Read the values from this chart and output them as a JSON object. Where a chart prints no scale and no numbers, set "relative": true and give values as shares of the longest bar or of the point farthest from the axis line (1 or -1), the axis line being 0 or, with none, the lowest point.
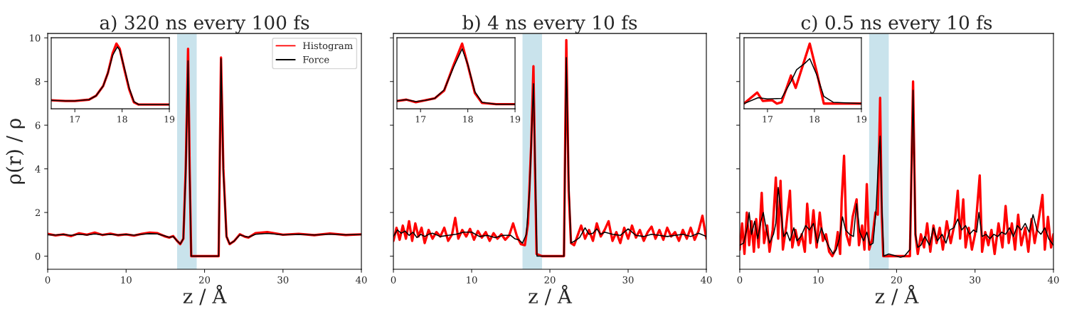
{
  "chart_data": [
    {
      "type": "line",
      "title": "a) 320 ns every 100 fs",
      "xlabel": "z / Å",
      "ylabel": "ρ(r) / ρ",
      "xlim": [
        0,
        40
      ],
      "xticks": [
        0,
        10,
        20,
        30,
        40
      ],
      "ylim": [
        -0.6,
        10.2
      ],
      "yticks": [
        0,
        2,
        4,
        6,
        8,
        10
      ],
      "legend": "top right",
      "grid": false,
      "bands": [
        {
          "axis": "x",
          "from": 16.5,
          "to": 19,
          "color": "#c9e3ec"
        }
      ],
      "series": [
        {
          "name": "Histogram",
          "color": "#ff0000",
          "x": [
            0,
            1,
            2,
            3,
            4,
            5,
            6,
            7,
            8,
            9,
            10,
            11,
            12,
            13,
            14,
            15,
            15.5,
            16,
            16.5,
            16.9,
            17.3,
            17.6,
            17.9,
            18.1,
            18.3,
            19,
            20,
            21,
            21.8,
            22.1,
            22.4,
            22.8,
            23.2,
            23.8,
            24.5,
            25.2,
            25.6,
            26.5,
            28,
            30,
            32,
            34,
            36,
            38,
            40
          ],
          "values": [
            1.02,
            0.95,
            1.0,
            0.92,
            1.05,
            0.98,
            1.08,
            0.97,
            1.03,
            0.96,
            1.0,
            0.94,
            1.02,
            1.08,
            1.05,
            0.9,
            0.85,
            0.92,
            0.7,
            0.55,
            0.8,
            4.0,
            9.5,
            4.0,
            0.0,
            0.0,
            0.0,
            0.0,
            0.0,
            9.1,
            4.0,
            0.9,
            0.55,
            0.7,
            1.0,
            0.88,
            0.85,
            1.05,
            1.1,
            0.98,
            1.02,
            0.96,
            1.04,
            0.97,
            1.0
          ]
        },
        {
          "name": "Force",
          "color": "#000000",
          "x": [
            0,
            1,
            2,
            3,
            4,
            5,
            6,
            7,
            8,
            9,
            10,
            11,
            12,
            13,
            14,
            15,
            15.5,
            16,
            16.5,
            16.9,
            17.3,
            17.6,
            17.9,
            18.1,
            18.3,
            19,
            20,
            21,
            21.8,
            22.1,
            22.4,
            22.8,
            23.2,
            23.8,
            24.5,
            25.2,
            25.6,
            26.5,
            28,
            30,
            32,
            34,
            36,
            38,
            40
          ],
          "values": [
            0.98,
            0.97,
            0.99,
            0.95,
            1.0,
            0.97,
            1.02,
            0.98,
            1.0,
            0.97,
            0.99,
            0.96,
            1.0,
            1.03,
            1.02,
            0.92,
            0.86,
            0.9,
            0.7,
            0.56,
            0.8,
            3.8,
            8.95,
            3.8,
            0.0,
            0.0,
            0.0,
            0.0,
            0.0,
            9.05,
            3.9,
            0.9,
            0.56,
            0.7,
            0.98,
            0.9,
            0.87,
            1.0,
            1.04,
            0.98,
            1.0,
            0.97,
            1.01,
            0.98,
            0.99
          ]
        }
      ]
    },
    {
      "type": "line",
      "relative": true,
      "xlim": [
        16.5,
        19
      ],
      "xticks": [
        17,
        18,
        19
      ],
      "tick_labels": "x",
      "series": [
        {
          "color": "#ff0000",
          "x": [
            16.5,
            16.8,
            17.0,
            17.3,
            17.45,
            17.6,
            17.7,
            17.8,
            17.88,
            17.95,
            18.05,
            18.15,
            18.25,
            18.35,
            18.6,
            19
          ],
          "values": [
            0.13,
            0.12,
            0.12,
            0.14,
            0.2,
            0.35,
            0.55,
            0.85,
            1.0,
            0.92,
            0.6,
            0.3,
            0.1,
            0.065,
            0.065,
            0.065
          ]
        },
        {
          "color": "#000000",
          "x": [
            16.5,
            16.8,
            17.0,
            17.3,
            17.45,
            17.6,
            17.7,
            17.8,
            17.9,
            17.95,
            18.05,
            18.15,
            18.25,
            18.35,
            18.6,
            19
          ],
          "values": [
            0.13,
            0.12,
            0.12,
            0.14,
            0.2,
            0.35,
            0.55,
            0.82,
            0.95,
            0.9,
            0.62,
            0.32,
            0.11,
            0.065,
            0.065,
            0.065
          ]
        }
      ]
    },
    {
      "type": "line",
      "title": "b) 4 ns every 10 fs",
      "xlabel": "z / Å",
      "xlim": [
        0,
        40
      ],
      "xticks": [
        0,
        10,
        20,
        30,
        40
      ],
      "ylim": [
        -0.6,
        10.2
      ],
      "yticks": [
        0,
        2,
        4,
        6,
        8,
        10
      ],
      "tick_labels": "x",
      "grid": false,
      "bands": [
        {
          "axis": "x",
          "from": 16.5,
          "to": 19,
          "color": "#c9e3ec"
        }
      ],
      "series": [
        {
          "color": "#ff0000",
          "x": [
            0,
            0.4,
            0.8,
            1.2,
            1.6,
            2.0,
            2.4,
            2.8,
            3.2,
            3.6,
            4.0,
            4.5,
            5.0,
            5.5,
            6.0,
            6.5,
            7.0,
            7.5,
            7.9,
            8.3,
            8.8,
            9.3,
            9.8,
            10.3,
            10.8,
            11.3,
            11.8,
            12.3,
            12.8,
            13.3,
            13.8,
            14.3,
            14.8,
            15.3,
            15.8,
            16.3,
            16.8,
            17.2,
            17.6,
            17.9,
            18.1,
            18.3,
            19,
            20,
            21,
            21.8,
            22.1,
            22.4,
            22.7,
            23.1,
            23.5,
            24,
            24.5,
            25,
            25.5,
            26,
            26.5,
            27,
            27.5,
            28,
            28.5,
            29,
            29.5,
            30,
            30.5,
            31,
            31.5,
            32,
            32.5,
            33,
            33.5,
            34,
            34.5,
            35,
            35.5,
            36,
            36.5,
            37,
            37.5,
            38,
            38.5,
            39,
            39.5,
            40
          ],
          "values": [
            0.7,
            1.3,
            0.75,
            1.4,
            0.8,
            1.6,
            0.7,
            1.5,
            0.9,
            1.3,
            0.6,
            1.2,
            0.8,
            1.1,
            0.9,
            1.3,
            0.7,
            1.0,
            1.75,
            0.8,
            1.2,
            0.9,
            1.25,
            0.75,
            1.15,
            0.85,
            1.1,
            0.7,
            1.05,
            0.8,
            1.0,
            0.75,
            0.95,
            1.5,
            0.9,
            0.55,
            0.5,
            1.5,
            5.0,
            8.7,
            4.0,
            0.1,
            0.0,
            0.0,
            0.0,
            0.0,
            9.9,
            3.0,
            0.6,
            0.5,
            0.9,
            1.4,
            0.8,
            1.2,
            0.7,
            1.5,
            0.9,
            1.2,
            1.6,
            0.7,
            1.1,
            0.6,
            1.3,
            0.8,
            1.4,
            0.85,
            1.2,
            0.7,
            1.1,
            1.35,
            0.8,
            1.2,
            0.75,
            1.3,
            0.9,
            1.1,
            0.7,
            1.2,
            0.8,
            1.3,
            0.75,
            1.15,
            1.85,
            0.8
          ]
        },
        {
          "color": "#000000",
          "x": [
            0,
            0.5,
            1,
            1.5,
            2,
            2.5,
            3,
            3.5,
            4,
            4.5,
            5,
            6,
            7,
            8,
            9,
            10,
            11,
            12,
            13,
            14,
            15,
            15.5,
            16,
            16.5,
            17,
            17.4,
            17.7,
            17.9,
            18.1,
            18.35,
            19,
            20,
            21,
            21.8,
            22.1,
            22.4,
            22.7,
            23.2,
            23.8,
            24.5,
            25,
            25.5,
            26,
            26.5,
            27,
            28,
            29,
            30,
            31,
            32,
            33,
            34,
            35,
            36,
            37,
            38,
            39,
            40
          ],
          "values": [
            0.9,
            1.2,
            1.05,
            1.15,
            0.95,
            1.1,
            0.85,
            1.0,
            0.9,
            1.0,
            1.05,
            0.9,
            0.95,
            1.0,
            1.1,
            1.1,
            0.9,
            0.95,
            0.85,
            0.95,
            0.95,
            0.8,
            0.75,
            0.6,
            1.0,
            3.0,
            6.0,
            7.9,
            4.5,
            0.0,
            0.0,
            0.0,
            0.0,
            0.0,
            9.1,
            3.5,
            0.6,
            0.7,
            0.85,
            1.3,
            1.0,
            1.05,
            1.25,
            1.0,
            1.1,
            1.0,
            0.95,
            1.25,
            0.95,
            0.9,
            1.0,
            0.95,
            0.9,
            0.95,
            1.0,
            0.9,
            1.05,
            0.9
          ]
        }
      ]
    },
    {
      "type": "line",
      "relative": true,
      "xlim": [
        16.5,
        19
      ],
      "xticks": [
        17,
        18,
        19
      ],
      "tick_labels": "x",
      "series": [
        {
          "color": "#ff0000",
          "x": [
            16.5,
            16.7,
            16.9,
            17.1,
            17.3,
            17.5,
            17.7,
            17.88,
            18.0,
            18.15,
            18.3,
            18.6,
            19
          ],
          "values": [
            0.12,
            0.14,
            0.1,
            0.13,
            0.16,
            0.28,
            0.67,
            1.0,
            0.67,
            0.24,
            0.09,
            0.07,
            0.07
          ]
        },
        {
          "color": "#000000",
          "x": [
            16.5,
            16.7,
            16.9,
            17.1,
            17.3,
            17.5,
            17.7,
            17.88,
            18.0,
            18.15,
            18.3,
            18.6,
            19
          ],
          "values": [
            0.12,
            0.14,
            0.11,
            0.13,
            0.16,
            0.29,
            0.64,
            0.92,
            0.68,
            0.26,
            0.1,
            0.07,
            0.07
          ]
        }
      ]
    },
    {
      "type": "line",
      "title": "c) 0.5 ns every 10 fs",
      "xlabel": "z / Å",
      "xlim": [
        0,
        40
      ],
      "xticks": [
        0,
        10,
        20,
        30,
        40
      ],
      "ylim": [
        -0.6,
        10.2
      ],
      "yticks": [
        0,
        2,
        4,
        6,
        8,
        10
      ],
      "tick_labels": "x",
      "grid": false,
      "bands": [
        {
          "axis": "x",
          "from": 16.5,
          "to": 19,
          "color": "#c9e3ec"
        }
      ],
      "series": [
        {
          "color": "#ff0000",
          "x": [
            0,
            0.3,
            0.6,
            0.9,
            1.2,
            1.5,
            1.8,
            2.1,
            2.4,
            2.8,
            3.1,
            3.5,
            3.8,
            4.2,
            4.6,
            4.9,
            5.2,
            5.5,
            5.9,
            6.4,
            6.7,
            7.1,
            7.5,
            7.9,
            8.3,
            8.6,
            9.0,
            9.4,
            9.8,
            10.2,
            10.6,
            11.0,
            11.4,
            11.8,
            12.2,
            12.5,
            12.8,
            13.0,
            13.3,
            13.6,
            14.0,
            14.4,
            14.9,
            15.2,
            15.6,
            15.9,
            16.2,
            16.5,
            16.9,
            17.3,
            17.6,
            17.9,
            18.1,
            18.3,
            19,
            20,
            21,
            21.7,
            22.1,
            22.4,
            22.7,
            23.1,
            23.5,
            23.9,
            24.3,
            24.7,
            25.1,
            25.5,
            25.9,
            26.4,
            26.9,
            27.4,
            27.8,
            28.1,
            28.5,
            28.8,
            29.2,
            29.6,
            30.0,
            30.6,
            30.9,
            31.3,
            31.7,
            32.1,
            32.5,
            33.0,
            33.5,
            33.9,
            34.3,
            34.7,
            35.1,
            35.5,
            35.9,
            36.4,
            36.8,
            37.2,
            37.6,
            38.0,
            38.6,
            38.9,
            39.3,
            39.7,
            40
          ],
          "values": [
            0.3,
            1.5,
            0.1,
            2.0,
            0.5,
            1.6,
            0.2,
            1.7,
            0.4,
            2.9,
            0.6,
            1.4,
            0.2,
            1.2,
            3.6,
            0.8,
            3.45,
            0.3,
            1.3,
            3.0,
            0.4,
            1.2,
            0.5,
            1.0,
            0.2,
            2.4,
            0.6,
            2.1,
            0.4,
            2.0,
            0.7,
            1.0,
            0.2,
            0.0,
            0.3,
            1.1,
            0.1,
            2.6,
            4.6,
            1.0,
            0.5,
            1.8,
            2.6,
            0.5,
            1.4,
            0.3,
            3.3,
            0.3,
            0.8,
            2.0,
            1.9,
            7.25,
            2.0,
            0.0,
            0.0,
            0.0,
            0.0,
            0.0,
            8.0,
            1.0,
            0.1,
            1.0,
            0.4,
            1.5,
            0.2,
            1.4,
            0.6,
            1.3,
            0.3,
            1.6,
            0.6,
            1.5,
            3.0,
            0.8,
            2.6,
            0.4,
            1.3,
            0.3,
            1.0,
            3.7,
            0.2,
            1.1,
            0.5,
            1.2,
            0.1,
            1.5,
            0.4,
            2.3,
            0.6,
            1.5,
            0.3,
            1.9,
            0.5,
            1.3,
            0.2,
            1.7,
            0.6,
            1.4,
            2.8,
            0.3,
            1.8,
            0.4,
            1.0
          ]
        },
        {
          "color": "#000000",
          "x": [
            0,
            0.5,
            1.0,
            1.2,
            1.5,
            1.9,
            2.3,
            2.7,
            3.0,
            3.4,
            3.8,
            4.3,
            4.6,
            4.9,
            5.2,
            5.6,
            6.0,
            6.4,
            6.9,
            7.3,
            7.8,
            8.4,
            8.9,
            9.4,
            9.9,
            10.4,
            10.9,
            11.4,
            11.9,
            12.3,
            12.7,
            13.1,
            13.5,
            14.0,
            14.5,
            14.9,
            15.3,
            15.8,
            16.2,
            16.6,
            17.0,
            17.4,
            17.7,
            17.9,
            18.1,
            18.35,
            19.0,
            20.0,
            20.5,
            21.0,
            21.7,
            22.1,
            22.4,
            22.7,
            23.1,
            23.6,
            24.2,
            24.7,
            25.2,
            25.8,
            26.3,
            26.8,
            27.3,
            27.8,
            28.3,
            28.8,
            29.3,
            29.8,
            30.2,
            30.5,
            30.9,
            31.4,
            31.9,
            32.4,
            32.9,
            33.4,
            33.9,
            34.4,
            34.9,
            35.4,
            35.9,
            36.4,
            36.9,
            37.4,
            37.9,
            38.4,
            38.9,
            39.4,
            40
          ],
          "values": [
            0.5,
            0.6,
            1.4,
            2.0,
            1.0,
            1.6,
            0.8,
            1.6,
            2.0,
            1.2,
            0.6,
            1.0,
            1.5,
            3.15,
            2.2,
            0.9,
            1.1,
            0.7,
            1.3,
            0.7,
            0.9,
            1.4,
            1.2,
            1.5,
            0.6,
            1.3,
            0.8,
            0.4,
            0.1,
            0.3,
            0.8,
            1.8,
            1.2,
            1.0,
            0.9,
            2.4,
            1.1,
            0.7,
            1.1,
            0.5,
            0.6,
            2.2,
            4.5,
            5.5,
            2.5,
            0.0,
            0.1,
            0.0,
            -0.05,
            0.0,
            0.3,
            7.6,
            1.0,
            0.4,
            0.5,
            0.9,
            0.5,
            1.3,
            0.7,
            1.0,
            0.6,
            1.2,
            1.3,
            1.7,
            1.2,
            1.4,
            1.0,
            1.2,
            1.1,
            2.0,
            0.9,
            1.0,
            0.8,
            1.0,
            0.9,
            1.1,
            1.0,
            1.3,
            0.9,
            1.4,
            1.2,
            1.5,
            1.1,
            1.9,
            1.2,
            1.0,
            1.3,
            0.8,
            0.5
          ]
        }
      ]
    },
    {
      "type": "line",
      "relative": true,
      "xlim": [
        16.5,
        19
      ],
      "xticks": [
        17,
        18,
        19
      ],
      "tick_labels": "x",
      "series": [
        {
          "color": "#ff0000",
          "x": [
            16.5,
            16.78,
            16.9,
            17.1,
            17.2,
            17.3,
            17.5,
            17.6,
            17.9,
            18.05,
            18.2,
            18.5,
            19
          ],
          "values": [
            0.08,
            0.25,
            0.12,
            0.13,
            0.08,
            0.1,
            0.51,
            0.32,
            1.0,
            0.56,
            0.08,
            0.08,
            0.08
          ]
        },
        {
          "color": "#000000",
          "x": [
            16.5,
            16.8,
            17.0,
            17.3,
            17.5,
            17.62,
            17.8,
            17.9,
            18.05,
            18.2,
            18.4,
            19
          ],
          "values": [
            0.08,
            0.17,
            0.15,
            0.16,
            0.42,
            0.6,
            0.7,
            0.77,
            0.52,
            0.19,
            0.1,
            0.08
          ]
        }
      ]
    }
  ]
}
